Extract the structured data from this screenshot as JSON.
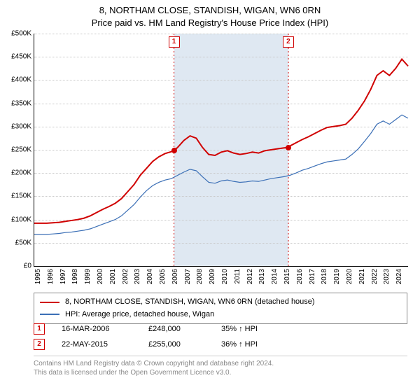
{
  "title": {
    "line1": "8, NORTHAM CLOSE, STANDISH, WIGAN, WN6 0RN",
    "line2": "Price paid vs. HM Land Registry's House Price Index (HPI)"
  },
  "chart": {
    "type": "line",
    "background_color": "#ffffff",
    "grid_color": "#c8c8c8",
    "axis_color": "#000000",
    "ylim": [
      0,
      500000
    ],
    "ytick_step": 50000,
    "y_format_prefix": "£",
    "y_format_suffix": "K",
    "y_format_divisor": 1000,
    "x_years": [
      1995,
      1996,
      1997,
      1998,
      1999,
      2000,
      2001,
      2002,
      2003,
      2004,
      2005,
      2006,
      2007,
      2008,
      2009,
      2010,
      2011,
      2012,
      2013,
      2014,
      2015,
      2016,
      2017,
      2018,
      2019,
      2020,
      2021,
      2022,
      2023,
      2024
    ],
    "x_domain": [
      1995,
      2025
    ],
    "shaded_band": {
      "from_year": 2006.21,
      "to_year": 2015.39,
      "color": "#dfe8f2"
    },
    "event_lines": [
      {
        "year": 2006.21,
        "color": "#d00000",
        "dash": "2,3",
        "label": "1"
      },
      {
        "year": 2015.39,
        "color": "#d00000",
        "dash": "2,3",
        "label": "2"
      }
    ],
    "series": [
      {
        "name": "price_paid",
        "label": "8, NORTHAM CLOSE, STANDISH, WIGAN, WN6 0RN (detached house)",
        "color": "#d00000",
        "width": 2,
        "points": [
          [
            1995.0,
            92000
          ],
          [
            1995.5,
            92000
          ],
          [
            1996.0,
            92000
          ],
          [
            1996.5,
            93000
          ],
          [
            1997.0,
            94000
          ],
          [
            1997.5,
            96000
          ],
          [
            1998.0,
            98000
          ],
          [
            1998.5,
            100000
          ],
          [
            1999.0,
            103000
          ],
          [
            1999.5,
            108000
          ],
          [
            2000.0,
            115000
          ],
          [
            2000.5,
            122000
          ],
          [
            2001.0,
            128000
          ],
          [
            2001.5,
            135000
          ],
          [
            2002.0,
            145000
          ],
          [
            2002.5,
            160000
          ],
          [
            2003.0,
            175000
          ],
          [
            2003.5,
            195000
          ],
          [
            2004.0,
            210000
          ],
          [
            2004.5,
            225000
          ],
          [
            2005.0,
            235000
          ],
          [
            2005.5,
            242000
          ],
          [
            2006.0,
            246000
          ],
          [
            2006.21,
            248000
          ],
          [
            2006.5,
            255000
          ],
          [
            2007.0,
            270000
          ],
          [
            2007.5,
            280000
          ],
          [
            2008.0,
            275000
          ],
          [
            2008.5,
            255000
          ],
          [
            2009.0,
            240000
          ],
          [
            2009.5,
            238000
          ],
          [
            2010.0,
            245000
          ],
          [
            2010.5,
            248000
          ],
          [
            2011.0,
            243000
          ],
          [
            2011.5,
            240000
          ],
          [
            2012.0,
            242000
          ],
          [
            2012.5,
            245000
          ],
          [
            2013.0,
            243000
          ],
          [
            2013.5,
            248000
          ],
          [
            2014.0,
            250000
          ],
          [
            2014.5,
            252000
          ],
          [
            2015.0,
            254000
          ],
          [
            2015.39,
            255000
          ],
          [
            2015.5,
            258000
          ],
          [
            2016.0,
            265000
          ],
          [
            2016.5,
            272000
          ],
          [
            2017.0,
            278000
          ],
          [
            2017.5,
            285000
          ],
          [
            2018.0,
            292000
          ],
          [
            2018.5,
            298000
          ],
          [
            2019.0,
            300000
          ],
          [
            2019.5,
            302000
          ],
          [
            2020.0,
            305000
          ],
          [
            2020.5,
            318000
          ],
          [
            2021.0,
            335000
          ],
          [
            2021.5,
            355000
          ],
          [
            2022.0,
            380000
          ],
          [
            2022.5,
            410000
          ],
          [
            2023.0,
            420000
          ],
          [
            2023.5,
            410000
          ],
          [
            2024.0,
            425000
          ],
          [
            2024.5,
            445000
          ],
          [
            2025.0,
            430000
          ]
        ],
        "markers": [
          {
            "x": 2006.21,
            "y": 248000
          },
          {
            "x": 2015.39,
            "y": 255000
          }
        ]
      },
      {
        "name": "hpi",
        "label": "HPI: Average price, detached house, Wigan",
        "color": "#3b6fb6",
        "width": 1.2,
        "points": [
          [
            1995.0,
            68000
          ],
          [
            1995.5,
            68000
          ],
          [
            1996.0,
            68000
          ],
          [
            1996.5,
            69000
          ],
          [
            1997.0,
            70000
          ],
          [
            1997.5,
            72000
          ],
          [
            1998.0,
            73000
          ],
          [
            1998.5,
            75000
          ],
          [
            1999.0,
            77000
          ],
          [
            1999.5,
            80000
          ],
          [
            2000.0,
            85000
          ],
          [
            2000.5,
            90000
          ],
          [
            2001.0,
            95000
          ],
          [
            2001.5,
            100000
          ],
          [
            2002.0,
            108000
          ],
          [
            2002.5,
            120000
          ],
          [
            2003.0,
            132000
          ],
          [
            2003.5,
            148000
          ],
          [
            2004.0,
            162000
          ],
          [
            2004.5,
            173000
          ],
          [
            2005.0,
            180000
          ],
          [
            2005.5,
            185000
          ],
          [
            2006.0,
            188000
          ],
          [
            2006.5,
            195000
          ],
          [
            2007.0,
            202000
          ],
          [
            2007.5,
            208000
          ],
          [
            2008.0,
            205000
          ],
          [
            2008.5,
            192000
          ],
          [
            2009.0,
            180000
          ],
          [
            2009.5,
            178000
          ],
          [
            2010.0,
            183000
          ],
          [
            2010.5,
            185000
          ],
          [
            2011.0,
            182000
          ],
          [
            2011.5,
            180000
          ],
          [
            2012.0,
            181000
          ],
          [
            2012.5,
            183000
          ],
          [
            2013.0,
            182000
          ],
          [
            2013.5,
            185000
          ],
          [
            2014.0,
            188000
          ],
          [
            2014.5,
            190000
          ],
          [
            2015.0,
            192000
          ],
          [
            2015.5,
            195000
          ],
          [
            2016.0,
            200000
          ],
          [
            2016.5,
            206000
          ],
          [
            2017.0,
            210000
          ],
          [
            2017.5,
            215000
          ],
          [
            2018.0,
            220000
          ],
          [
            2018.5,
            224000
          ],
          [
            2019.0,
            226000
          ],
          [
            2019.5,
            228000
          ],
          [
            2020.0,
            230000
          ],
          [
            2020.5,
            240000
          ],
          [
            2021.0,
            252000
          ],
          [
            2021.5,
            268000
          ],
          [
            2022.0,
            285000
          ],
          [
            2022.5,
            305000
          ],
          [
            2023.0,
            312000
          ],
          [
            2023.5,
            305000
          ],
          [
            2024.0,
            315000
          ],
          [
            2024.5,
            325000
          ],
          [
            2025.0,
            318000
          ]
        ]
      }
    ]
  },
  "legend": {
    "rows": [
      {
        "color": "#d00000",
        "label": "8, NORTHAM CLOSE, STANDISH, WIGAN, WN6 0RN (detached house)"
      },
      {
        "color": "#3b6fb6",
        "label": "HPI: Average price, detached house, Wigan"
      }
    ]
  },
  "events": [
    {
      "n": "1",
      "date": "16-MAR-2006",
      "price": "£248,000",
      "hpi": "35% ↑ HPI"
    },
    {
      "n": "2",
      "date": "22-MAY-2015",
      "price": "£255,000",
      "hpi": "36% ↑ HPI"
    }
  ],
  "footer": {
    "line1": "Contains HM Land Registry data © Crown copyright and database right 2024.",
    "line2": "This data is licensed under the Open Government Licence v3.0."
  }
}
